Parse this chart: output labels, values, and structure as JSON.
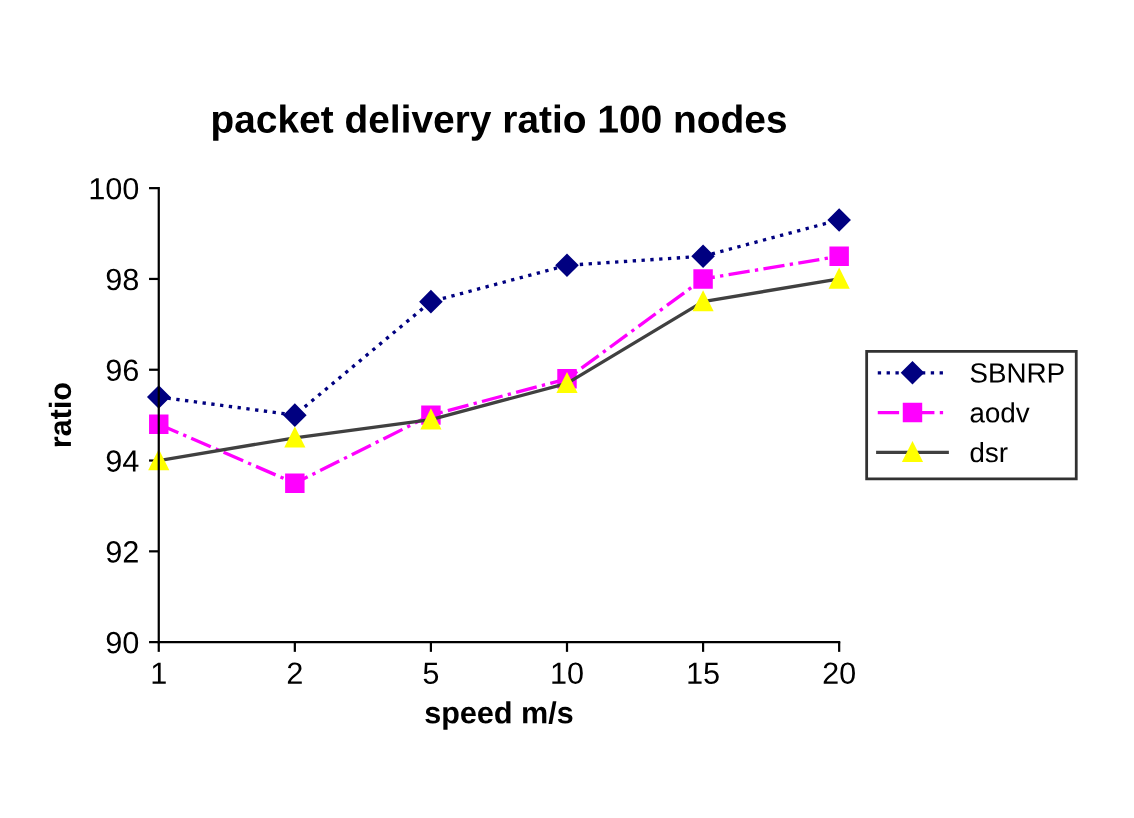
{
  "chart_data": {
    "type": "line",
    "title": "packet delivery ratio 100 nodes",
    "xlabel": "speed m/s",
    "ylabel": "ratio",
    "categories": [
      "1",
      "2",
      "5",
      "10",
      "15",
      "20"
    ],
    "series": [
      {
        "name": "SBNRP",
        "color": "#000080",
        "marker": "diamond",
        "line_style": "dotted",
        "values": [
          95.4,
          95.0,
          97.5,
          98.3,
          98.5,
          99.3
        ]
      },
      {
        "name": "aodv",
        "color": "#ff00ff",
        "marker": "square",
        "line_style": "dashdot",
        "values": [
          94.8,
          93.5,
          95.0,
          95.8,
          98.0,
          98.5
        ]
      },
      {
        "name": "dsr",
        "color": "#ffff00",
        "marker": "triangle",
        "line_style": "solid",
        "values": [
          94.0,
          94.5,
          94.9,
          95.7,
          97.5,
          98.0
        ]
      }
    ],
    "ylim": [
      90,
      100
    ],
    "yticks": [
      90,
      92,
      94,
      96,
      98,
      100
    ],
    "grid": false,
    "legend": "right"
  }
}
